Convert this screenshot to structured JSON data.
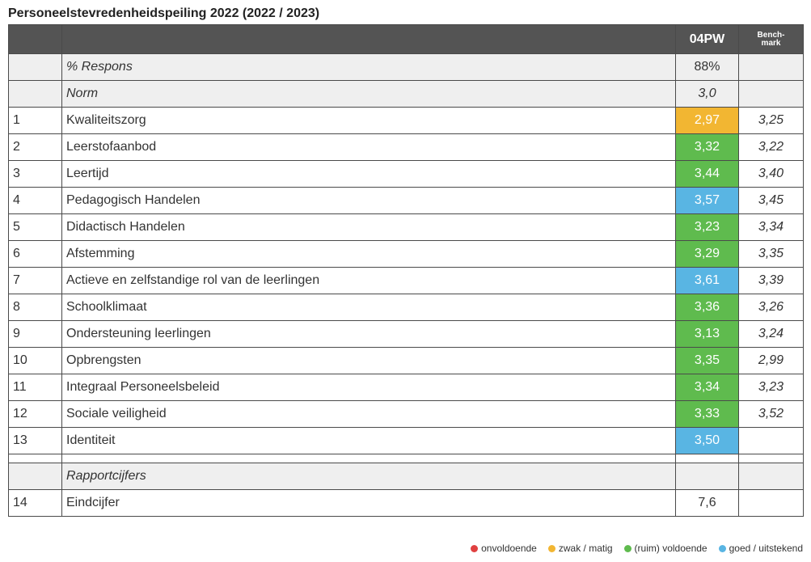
{
  "title": "Personeelstevredenheidspeiling 2022 (2022 / 2023)",
  "header": {
    "score_col": "04PW",
    "bench_col": "Bench-mark"
  },
  "colors": {
    "orange": "#f2b632",
    "green": "#5fbb4e",
    "blue": "#59b5e3",
    "red": "#e04040"
  },
  "respons": {
    "label": "% Respons",
    "score": "88%"
  },
  "norm": {
    "label": "Norm",
    "score": "3,0"
  },
  "rows": [
    {
      "num": "1",
      "label": "Kwaliteitszorg",
      "score": "2,97",
      "bench": "3,25",
      "color": "#f2b632"
    },
    {
      "num": "2",
      "label": "Leerstofaanbod",
      "score": "3,32",
      "bench": "3,22",
      "color": "#5fbb4e"
    },
    {
      "num": "3",
      "label": "Leertijd",
      "score": "3,44",
      "bench": "3,40",
      "color": "#5fbb4e"
    },
    {
      "num": "4",
      "label": "Pedagogisch Handelen",
      "score": "3,57",
      "bench": "3,45",
      "color": "#59b5e3"
    },
    {
      "num": "5",
      "label": "Didactisch Handelen",
      "score": "3,23",
      "bench": "3,34",
      "color": "#5fbb4e"
    },
    {
      "num": "6",
      "label": "Afstemming",
      "score": "3,29",
      "bench": "3,35",
      "color": "#5fbb4e"
    },
    {
      "num": "7",
      "label": "Actieve en zelfstandige rol van de leerlingen",
      "score": "3,61",
      "bench": "3,39",
      "color": "#59b5e3"
    },
    {
      "num": "8",
      "label": "Schoolklimaat",
      "score": "3,36",
      "bench": "3,26",
      "color": "#5fbb4e"
    },
    {
      "num": "9",
      "label": "Ondersteuning leerlingen",
      "score": "3,13",
      "bench": "3,24",
      "color": "#5fbb4e"
    },
    {
      "num": "10",
      "label": "Opbrengsten",
      "score": "3,35",
      "bench": "2,99",
      "color": "#5fbb4e"
    },
    {
      "num": "11",
      "label": "Integraal Personeelsbeleid",
      "score": "3,34",
      "bench": "3,23",
      "color": "#5fbb4e"
    },
    {
      "num": "12",
      "label": "Sociale veiligheid",
      "score": "3,33",
      "bench": "3,52",
      "color": "#5fbb4e"
    },
    {
      "num": "13",
      "label": "Identiteit",
      "score": "3,50",
      "bench": "",
      "color": "#59b5e3"
    }
  ],
  "rapport": {
    "label": "Rapportcijfers"
  },
  "eindcijfer": {
    "num": "14",
    "label": "Eindcijfer",
    "score": "7,6"
  },
  "legend": [
    {
      "label": "onvoldoende",
      "color": "#e04040",
      "icon": "dot-icon"
    },
    {
      "label": "zwak / matig",
      "color": "#f2b632",
      "icon": "dot-icon"
    },
    {
      "label": "(ruim) voldoende",
      "color": "#5fbb4e",
      "icon": "dot-icon"
    },
    {
      "label": "goed / uitstekend",
      "color": "#59b5e3",
      "icon": "dot-icon"
    }
  ]
}
